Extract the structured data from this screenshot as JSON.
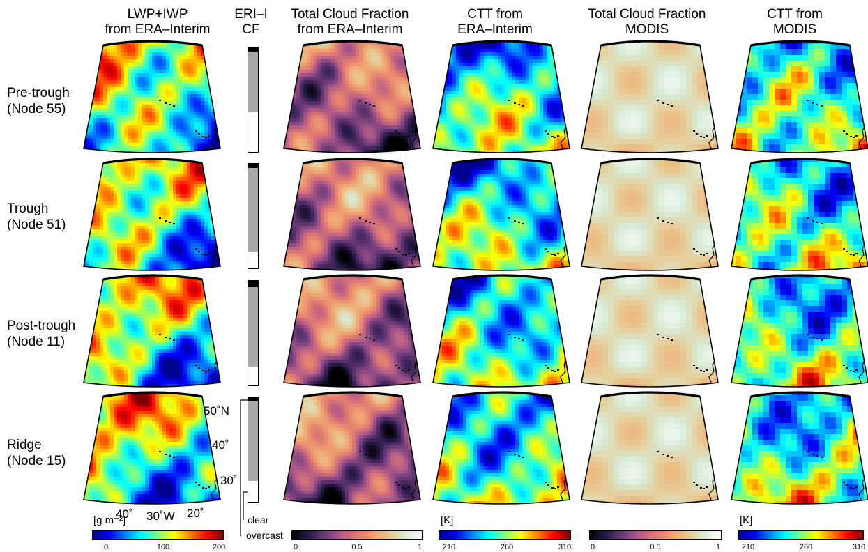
{
  "headers": {
    "lwp": [
      "LWP+IWP",
      "from ERA–Interim"
    ],
    "cf_bar": [
      "ERI–I",
      "CF"
    ],
    "tcf_era": [
      "Total Cloud Fraction",
      "from ERA–Interim"
    ],
    "ctt_era": [
      "CTT from",
      "ERA–Interim"
    ],
    "tcf_modis": [
      "Total Cloud Fraction",
      "MODIS"
    ],
    "ctt_modis": [
      "CTT from",
      "MODIS"
    ]
  },
  "rows": [
    {
      "name": "Pre-trough",
      "node": "(Node 55)",
      "cf": {
        "overcast": 0.04,
        "clear": 0.38
      }
    },
    {
      "name": "Trough",
      "node": "(Node 51)",
      "cf": {
        "overcast": 0.04,
        "clear": 0.16
      }
    },
    {
      "name": "Post-trough",
      "node": "(Node 11)",
      "cf": {
        "overcast": 0.06,
        "clear": 0.18
      }
    },
    {
      "name": "Ridge",
      "node": "(Node 15)",
      "cf": {
        "overcast": 0.04,
        "clear": 0.2
      }
    }
  ],
  "axis_labels": {
    "lat50": "50˚N",
    "lat40": "40˚",
    "lat30": "30˚",
    "lon40": "40˚",
    "lon30": "30˚W",
    "lon20": "20˚"
  },
  "legend": {
    "clear": "clear",
    "overcast": "overcast"
  },
  "colorbars": {
    "lwp": {
      "unit": "[g m⁻²]",
      "ticks": [
        "0",
        "100",
        "200"
      ],
      "range": [
        0,
        200
      ]
    },
    "tcf_era": {
      "ticks": [
        "0",
        "0.5",
        "1"
      ],
      "range": [
        0,
        1
      ]
    },
    "ctt_era": {
      "unit": "[K]",
      "ticks": [
        "210",
        "260",
        "310"
      ],
      "range": [
        210,
        310
      ]
    },
    "tcf_modis": {
      "ticks": [
        "0",
        "0.5",
        "1"
      ],
      "range": [
        0,
        1
      ]
    },
    "ctt_modis": {
      "unit": "[K]",
      "ticks": [
        "210",
        "260",
        "310"
      ],
      "range": [
        210,
        310
      ]
    }
  },
  "colors": {
    "jet": [
      "#00008f",
      "#0000ff",
      "#0080ff",
      "#00ffff",
      "#80ff80",
      "#ffff00",
      "#ff8000",
      "#ff0000",
      "#800000"
    ],
    "cf": [
      "#000000",
      "#2a1b4a",
      "#6a3a78",
      "#b15a8a",
      "#e07a72",
      "#f0a070",
      "#e8c890",
      "#d8ecd8",
      "#ffffff"
    ]
  }
}
